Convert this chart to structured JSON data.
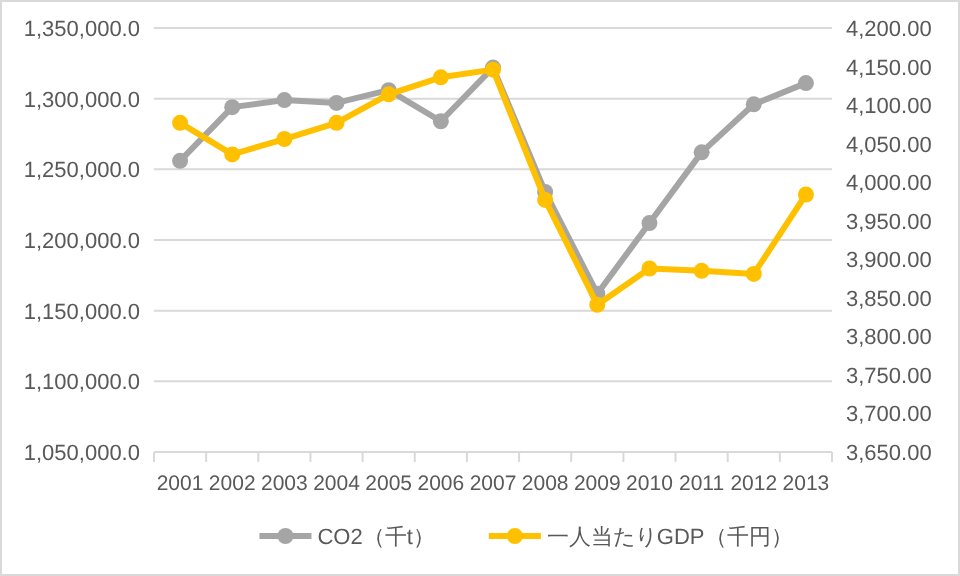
{
  "chart_data": {
    "type": "line",
    "categories": [
      "2001",
      "2002",
      "2003",
      "2004",
      "2005",
      "2006",
      "2007",
      "2008",
      "2009",
      "2010",
      "2011",
      "2012",
      "2013"
    ],
    "series": [
      {
        "name": "CO2（千t）",
        "color": "#a5a5a5",
        "values": [
          1256000,
          1294000,
          1299000,
          1297000,
          1306000,
          1284000,
          1322000,
          1234000,
          1162000,
          1212000,
          1262000,
          1296000,
          1311000
        ]
      },
      {
        "name": "一人当たりGDP（千円）",
        "color": "#ffc000",
        "axis": "y2",
        "values": [
          4077,
          4036,
          4056,
          4077,
          4114,
          4136,
          4146,
          3977,
          3841,
          3888,
          3885,
          3881,
          3984
        ]
      }
    ],
    "ylim": [
      1050000,
      1350000
    ],
    "yticks": [
      {
        "value": 1050000,
        "label": "1,050,000.0"
      },
      {
        "value": 1100000,
        "label": "1,100,000.0"
      },
      {
        "value": 1150000,
        "label": "1,150,000.0"
      },
      {
        "value": 1200000,
        "label": "1,200,000.0"
      },
      {
        "value": 1250000,
        "label": "1,250,000.0"
      },
      {
        "value": 1300000,
        "label": "1,300,000.0"
      },
      {
        "value": 1350000,
        "label": "1,350,000.0"
      }
    ],
    "y2lim": [
      3650,
      4200
    ],
    "y2ticks": [
      {
        "value": 3650,
        "label": "3,650.00"
      },
      {
        "value": 3700,
        "label": "3,700.00"
      },
      {
        "value": 3750,
        "label": "3,750.00"
      },
      {
        "value": 3800,
        "label": "3,800.00"
      },
      {
        "value": 3850,
        "label": "3,850.00"
      },
      {
        "value": 3900,
        "label": "3,900.00"
      },
      {
        "value": 3950,
        "label": "3,950.00"
      },
      {
        "value": 4000,
        "label": "4,000.00"
      },
      {
        "value": 4050,
        "label": "4,050.00"
      },
      {
        "value": 4100,
        "label": "4,100.00"
      },
      {
        "value": 4150,
        "label": "4,150.00"
      },
      {
        "value": 4200,
        "label": "4,200.00"
      }
    ],
    "grid": "y",
    "legend": "bottom",
    "marker": "circle",
    "line_style": "solid"
  }
}
